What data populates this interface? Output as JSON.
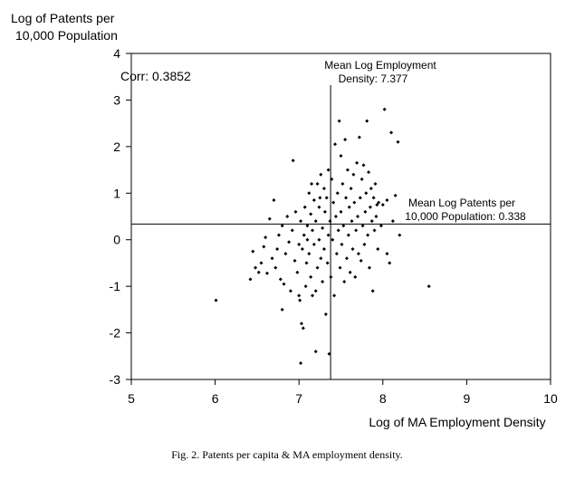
{
  "chart_data": {
    "type": "scatter",
    "ylabel_lines": [
      "Log of Patents per",
      "10,000 Population"
    ],
    "xlabel": "Log of MA Employment Density",
    "caption": "Fig. 2. Patents per capita & MA employment density.",
    "xlim": [
      5,
      10
    ],
    "ylim": [
      -3,
      4
    ],
    "xticks": [
      5,
      6,
      7,
      8,
      9,
      10
    ],
    "yticks": [
      -3,
      -2,
      -1,
      0,
      1,
      2,
      3,
      4
    ],
    "corr_label": "Corr: 0.3852",
    "mean_x": 7.377,
    "mean_y": 0.338,
    "mean_x_label_lines": [
      "Mean Log Employment",
      "Density: 7.377"
    ],
    "mean_y_label_lines": [
      "Mean Log Patents per",
      "10,000 Population: 0.338"
    ],
    "colors": {
      "axis": "#000000",
      "point": "#000000",
      "background": "#ffffff"
    },
    "points": [
      [
        6.01,
        -1.3
      ],
      [
        6.42,
        -0.85
      ],
      [
        6.45,
        -0.25
      ],
      [
        6.48,
        -0.6
      ],
      [
        6.52,
        -0.7
      ],
      [
        6.55,
        -0.5
      ],
      [
        6.58,
        -0.15
      ],
      [
        6.6,
        0.05
      ],
      [
        6.62,
        -0.72
      ],
      [
        6.65,
        0.45
      ],
      [
        6.68,
        -0.4
      ],
      [
        6.7,
        0.85
      ],
      [
        6.72,
        -0.6
      ],
      [
        6.74,
        -0.2
      ],
      [
        6.76,
        0.1
      ],
      [
        6.78,
        -0.85
      ],
      [
        6.8,
        -1.5
      ],
      [
        6.8,
        0.3
      ],
      [
        6.82,
        -0.95
      ],
      [
        6.84,
        -0.3
      ],
      [
        6.86,
        0.5
      ],
      [
        6.88,
        -0.05
      ],
      [
        6.9,
        -1.1
      ],
      [
        6.92,
        0.2
      ],
      [
        6.93,
        1.7
      ],
      [
        6.95,
        -0.45
      ],
      [
        6.96,
        0.6
      ],
      [
        6.98,
        -0.7
      ],
      [
        7.0,
        -0.1
      ],
      [
        7.0,
        -1.2
      ],
      [
        7.01,
        -1.3
      ],
      [
        7.02,
        0.4
      ],
      [
        7.03,
        -1.8
      ],
      [
        7.04,
        -0.2
      ],
      [
        7.05,
        -1.9
      ],
      [
        7.06,
        0.1
      ],
      [
        7.07,
        0.7
      ],
      [
        7.08,
        -1.0
      ],
      [
        7.09,
        -0.5
      ],
      [
        7.1,
        0.3
      ],
      [
        7.1,
        0.0
      ],
      [
        7.12,
        1.0
      ],
      [
        7.12,
        -0.3
      ],
      [
        7.14,
        -0.8
      ],
      [
        7.14,
        0.55
      ],
      [
        7.16,
        -1.2
      ],
      [
        7.16,
        0.2
      ],
      [
        7.18,
        0.85
      ],
      [
        7.18,
        -0.1
      ],
      [
        7.2,
        -1.1
      ],
      [
        7.2,
        0.4
      ],
      [
        7.22,
        1.2
      ],
      [
        7.22,
        -0.6
      ],
      [
        7.24,
        0.0
      ],
      [
        7.24,
        0.7
      ],
      [
        7.26,
        -0.4
      ],
      [
        7.26,
        1.4
      ],
      [
        7.28,
        0.25
      ],
      [
        7.28,
        -0.9
      ],
      [
        7.3,
        1.1
      ],
      [
        7.3,
        -0.2
      ],
      [
        7.31,
        0.6
      ],
      [
        7.32,
        -1.6
      ],
      [
        7.33,
        0.9
      ],
      [
        7.34,
        -0.5
      ],
      [
        7.35,
        1.5
      ],
      [
        7.35,
        0.1
      ],
      [
        7.36,
        -2.45
      ],
      [
        7.37,
        0.4
      ],
      [
        7.38,
        -0.8
      ],
      [
        7.39,
        1.3
      ],
      [
        7.4,
        0.0
      ],
      [
        7.41,
        0.8
      ],
      [
        7.42,
        -1.2
      ],
      [
        7.43,
        2.05
      ],
      [
        7.44,
        0.5
      ],
      [
        7.45,
        -0.3
      ],
      [
        7.46,
        1.0
      ],
      [
        7.47,
        0.2
      ],
      [
        7.48,
        2.55
      ],
      [
        7.49,
        -0.6
      ],
      [
        7.5,
        1.8
      ],
      [
        7.5,
        0.6
      ],
      [
        7.51,
        -0.1
      ],
      [
        7.52,
        1.2
      ],
      [
        7.53,
        0.3
      ],
      [
        7.54,
        -0.9
      ],
      [
        7.55,
        2.15
      ],
      [
        7.56,
        0.9
      ],
      [
        7.57,
        -0.4
      ],
      [
        7.58,
        1.5
      ],
      [
        7.59,
        0.1
      ],
      [
        7.6,
        0.7
      ],
      [
        7.61,
        -0.7
      ],
      [
        7.62,
        1.1
      ],
      [
        7.63,
        0.4
      ],
      [
        7.64,
        -0.2
      ],
      [
        7.65,
        1.4
      ],
      [
        7.66,
        0.8
      ],
      [
        7.67,
        -0.8
      ],
      [
        7.68,
        0.2
      ],
      [
        7.69,
        1.65
      ],
      [
        7.7,
        0.5
      ],
      [
        7.71,
        -0.3
      ],
      [
        7.72,
        2.2
      ],
      [
        7.73,
        0.9
      ],
      [
        7.74,
        -0.45
      ],
      [
        7.75,
        1.3
      ],
      [
        7.76,
        0.3
      ],
      [
        7.77,
        1.6
      ],
      [
        7.78,
        -0.1
      ],
      [
        7.79,
        0.6
      ],
      [
        7.8,
        1.0
      ],
      [
        7.81,
        2.55
      ],
      [
        7.82,
        0.1
      ],
      [
        7.83,
        1.45
      ],
      [
        7.84,
        -0.6
      ],
      [
        7.85,
        0.7
      ],
      [
        7.86,
        1.1
      ],
      [
        7.87,
        0.4
      ],
      [
        7.88,
        -1.1
      ],
      [
        7.89,
        0.9
      ],
      [
        7.9,
        0.2
      ],
      [
        7.91,
        1.2
      ],
      [
        7.92,
        0.5
      ],
      [
        7.93,
        0.75
      ],
      [
        7.94,
        -0.2
      ],
      [
        7.95,
        0.8
      ],
      [
        7.98,
        0.3
      ],
      [
        8.0,
        0.75
      ],
      [
        8.02,
        2.8
      ],
      [
        8.05,
        0.85
      ],
      [
        8.05,
        -0.3
      ],
      [
        8.08,
        -0.5
      ],
      [
        8.1,
        2.3
      ],
      [
        8.12,
        0.4
      ],
      [
        8.15,
        0.95
      ],
      [
        8.18,
        2.1
      ],
      [
        8.2,
        0.1
      ],
      [
        8.55,
        -1.0
      ],
      [
        7.2,
        -2.4
      ],
      [
        7.02,
        -2.65
      ],
      [
        7.15,
        1.2
      ],
      [
        7.25,
        0.9
      ]
    ]
  }
}
